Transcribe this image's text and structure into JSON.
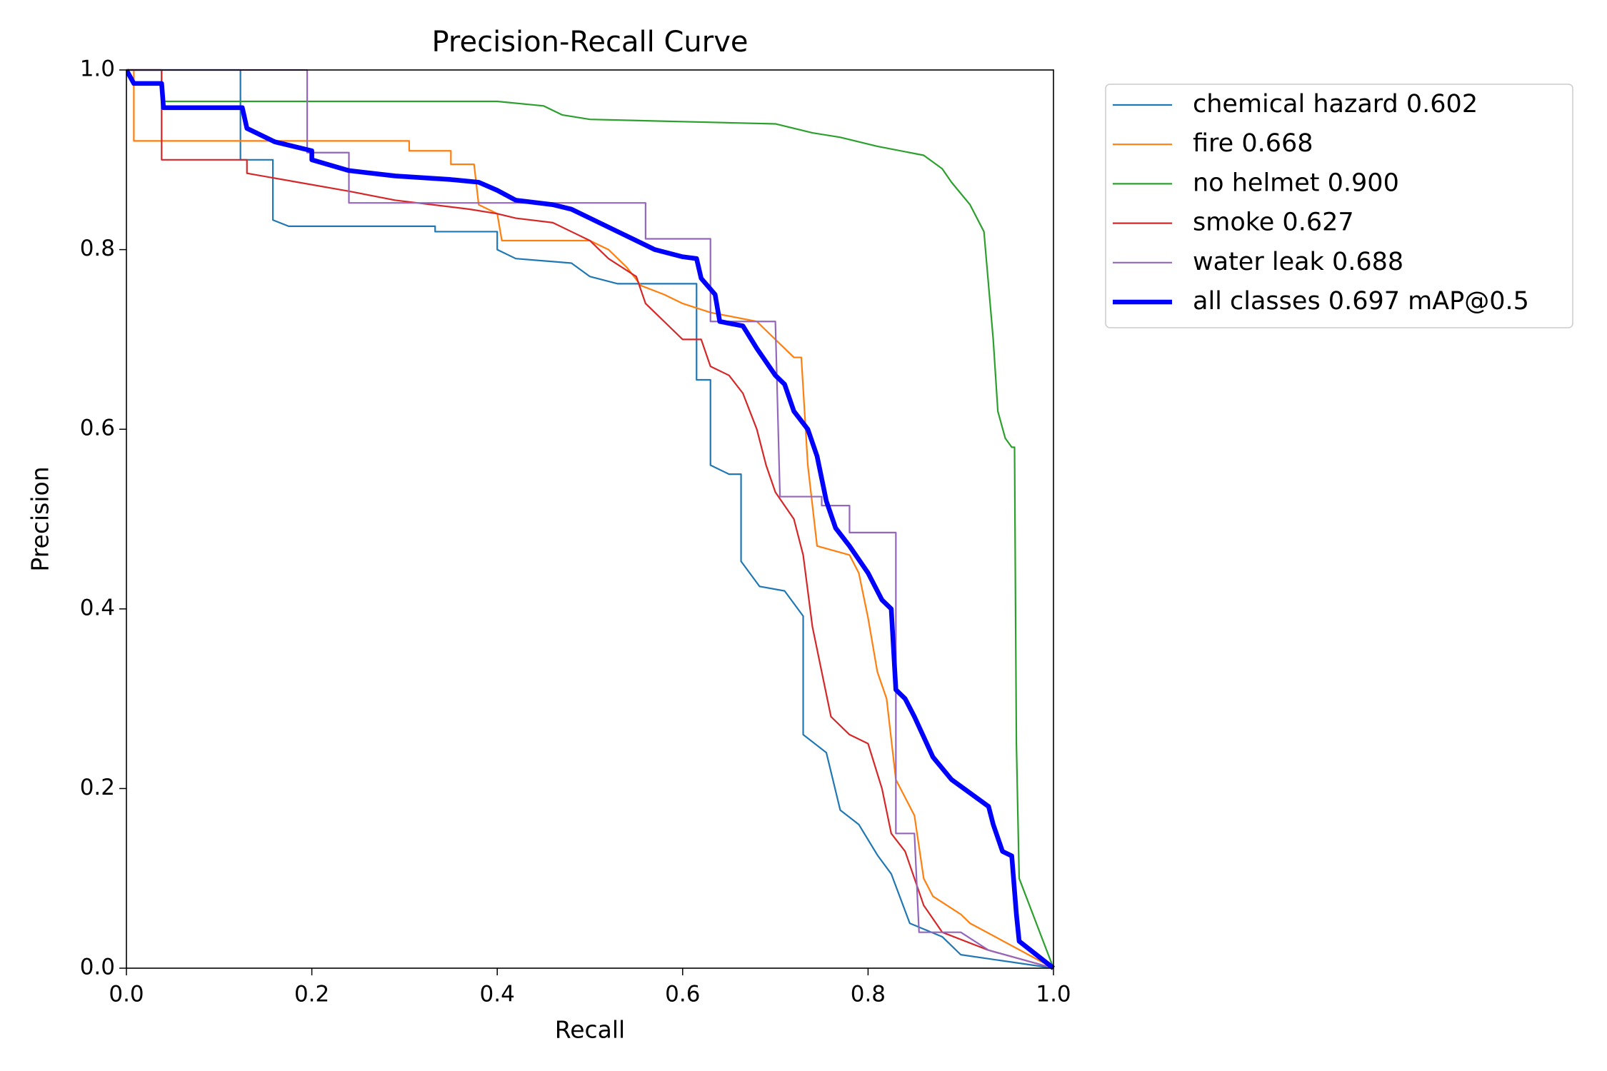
{
  "chart_data": {
    "type": "line",
    "title": "Precision-Recall Curve",
    "x_label": "Recall",
    "y_label": "Precision",
    "xlim": [
      0,
      1
    ],
    "ylim": [
      0,
      1
    ],
    "xticks": [
      {
        "value": 0,
        "label": "0.0"
      },
      0.2,
      0.4,
      0.6,
      0.8,
      {
        "value": 1,
        "label": "1.0"
      }
    ],
    "yticks": [
      {
        "value": 0,
        "label": "0.0"
      },
      0.2,
      0.4,
      0.6,
      0.8,
      {
        "value": 1,
        "label": "1.0"
      }
    ],
    "legend": "outside-upper-right",
    "series": [
      {
        "name": "chemical hazard 0.602",
        "color": "#1f77b4",
        "linewidth": 1,
        "x": [
          0,
          0.123,
          0.123,
          0.158,
          0.158,
          0.175,
          0.333,
          0.333,
          0.4,
          0.4,
          0.42,
          0.48,
          0.5,
          0.53,
          0.615,
          0.615,
          0.63,
          0.63,
          0.65,
          0.663,
          0.663,
          0.683,
          0.71,
          0.73,
          0.73,
          0.755,
          0.77,
          0.79,
          0.81,
          0.825,
          0.845,
          0.88,
          0.9,
          1.0
        ],
        "values": [
          1,
          1,
          0.9,
          0.9,
          0.833,
          0.826,
          0.826,
          0.82,
          0.82,
          0.8,
          0.79,
          0.785,
          0.77,
          0.762,
          0.762,
          0.655,
          0.655,
          0.56,
          0.55,
          0.55,
          0.453,
          0.425,
          0.42,
          0.392,
          0.26,
          0.24,
          0.176,
          0.16,
          0.126,
          0.105,
          0.05,
          0.035,
          0.015,
          0
        ]
      },
      {
        "name": "fire 0.668",
        "color": "#ff7f0e",
        "linewidth": 1,
        "x": [
          0,
          0.008,
          0.008,
          0.305,
          0.305,
          0.35,
          0.35,
          0.375,
          0.38,
          0.4,
          0.405,
          0.5,
          0.52,
          0.54,
          0.555,
          0.58,
          0.6,
          0.63,
          0.68,
          0.7,
          0.72,
          0.728,
          0.735,
          0.745,
          0.78,
          0.79,
          0.8,
          0.81,
          0.82,
          0.83,
          0.85,
          0.86,
          0.87,
          0.9,
          0.91,
          1.0
        ],
        "values": [
          1,
          1,
          0.921,
          0.921,
          0.91,
          0.91,
          0.895,
          0.895,
          0.85,
          0.84,
          0.81,
          0.81,
          0.8,
          0.78,
          0.76,
          0.75,
          0.74,
          0.73,
          0.72,
          0.7,
          0.68,
          0.68,
          0.56,
          0.47,
          0.46,
          0.44,
          0.39,
          0.33,
          0.3,
          0.21,
          0.17,
          0.1,
          0.08,
          0.06,
          0.05,
          0
        ]
      },
      {
        "name": "no helmet 0.900",
        "color": "#2ca02c",
        "linewidth": 1,
        "x": [
          0,
          0.038,
          0.038,
          0.4,
          0.45,
          0.46,
          0.47,
          0.5,
          0.7,
          0.74,
          0.77,
          0.81,
          0.86,
          0.88,
          0.89,
          0.91,
          0.925,
          0.93,
          0.935,
          0.94,
          0.948,
          0.955,
          0.958,
          0.96,
          0.963,
          1.0
        ],
        "values": [
          1,
          1,
          0.965,
          0.965,
          0.96,
          0.955,
          0.95,
          0.945,
          0.94,
          0.93,
          0.925,
          0.915,
          0.905,
          0.89,
          0.875,
          0.85,
          0.82,
          0.76,
          0.7,
          0.62,
          0.59,
          0.58,
          0.58,
          0.25,
          0.1,
          0
        ]
      },
      {
        "name": "smoke 0.627",
        "color": "#d62728",
        "linewidth": 1,
        "x": [
          0,
          0.038,
          0.038,
          0.13,
          0.13,
          0.185,
          0.24,
          0.29,
          0.37,
          0.4,
          0.42,
          0.46,
          0.48,
          0.5,
          0.52,
          0.55,
          0.56,
          0.58,
          0.6,
          0.62,
          0.63,
          0.65,
          0.665,
          0.68,
          0.69,
          0.7,
          0.72,
          0.73,
          0.74,
          0.76,
          0.78,
          0.8,
          0.815,
          0.825,
          0.84,
          0.86,
          0.88,
          0.93,
          1.0
        ],
        "values": [
          1,
          1,
          0.9,
          0.9,
          0.885,
          0.875,
          0.865,
          0.855,
          0.845,
          0.84,
          0.835,
          0.83,
          0.82,
          0.81,
          0.79,
          0.77,
          0.74,
          0.72,
          0.7,
          0.7,
          0.67,
          0.66,
          0.64,
          0.6,
          0.56,
          0.53,
          0.5,
          0.46,
          0.38,
          0.28,
          0.26,
          0.25,
          0.2,
          0.15,
          0.13,
          0.07,
          0.04,
          0.02,
          0
        ]
      },
      {
        "name": "water leak 0.688",
        "color": "#9467bd",
        "linewidth": 1,
        "x": [
          0,
          0.195,
          0.195,
          0.24,
          0.24,
          0.56,
          0.56,
          0.63,
          0.63,
          0.7,
          0.705,
          0.75,
          0.75,
          0.78,
          0.78,
          0.83,
          0.83,
          0.85,
          0.855,
          0.9,
          0.93,
          1.0
        ],
        "values": [
          1,
          1,
          0.908,
          0.908,
          0.852,
          0.852,
          0.812,
          0.812,
          0.72,
          0.72,
          0.525,
          0.525,
          0.515,
          0.515,
          0.485,
          0.485,
          0.15,
          0.15,
          0.04,
          0.04,
          0.02,
          0
        ]
      },
      {
        "name": "all classes 0.697 mAP@0.5",
        "color": "#0000ff",
        "linewidth": 3,
        "x": [
          0,
          0.008,
          0.038,
          0.04,
          0.125,
          0.13,
          0.16,
          0.2,
          0.2,
          0.24,
          0.29,
          0.35,
          0.38,
          0.4,
          0.42,
          0.46,
          0.48,
          0.5,
          0.53,
          0.55,
          0.57,
          0.6,
          0.615,
          0.62,
          0.635,
          0.64,
          0.665,
          0.68,
          0.7,
          0.71,
          0.72,
          0.735,
          0.745,
          0.755,
          0.765,
          0.78,
          0.8,
          0.815,
          0.825,
          0.83,
          0.84,
          0.85,
          0.87,
          0.89,
          0.91,
          0.93,
          0.935,
          0.945,
          0.955,
          0.96,
          0.963,
          1.0
        ],
        "values": [
          1,
          0.985,
          0.985,
          0.958,
          0.958,
          0.935,
          0.92,
          0.91,
          0.9,
          0.888,
          0.882,
          0.878,
          0.875,
          0.866,
          0.855,
          0.85,
          0.845,
          0.835,
          0.82,
          0.81,
          0.8,
          0.792,
          0.79,
          0.768,
          0.75,
          0.72,
          0.715,
          0.69,
          0.66,
          0.65,
          0.62,
          0.6,
          0.57,
          0.52,
          0.49,
          0.47,
          0.44,
          0.41,
          0.4,
          0.31,
          0.3,
          0.28,
          0.235,
          0.21,
          0.195,
          0.18,
          0.16,
          0.13,
          0.125,
          0.06,
          0.03,
          0
        ]
      }
    ]
  }
}
